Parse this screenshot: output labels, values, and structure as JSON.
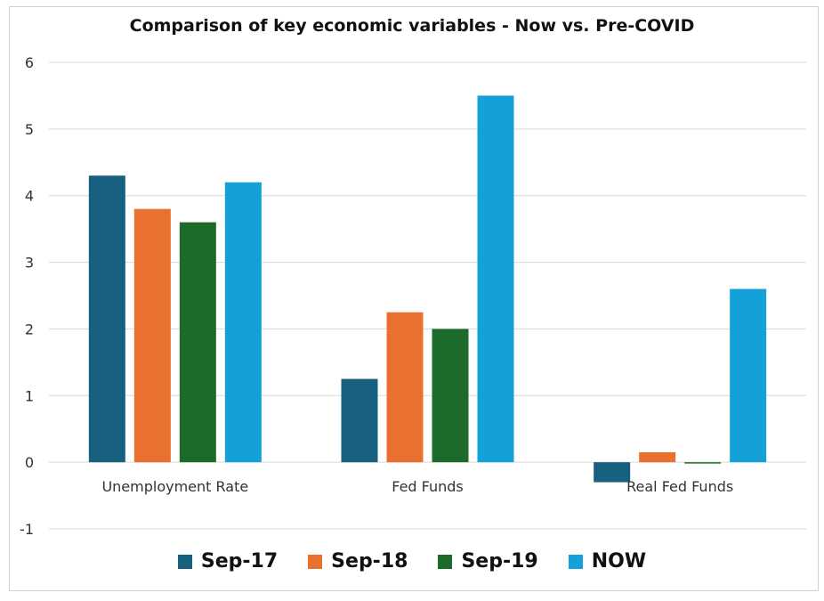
{
  "chart_data": {
    "type": "bar",
    "title": "Comparison of key economic variables - Now vs. Pre-COVID",
    "categories": [
      "Unemployment Rate",
      "Fed Funds",
      "Real Fed Funds"
    ],
    "series": [
      {
        "name": "Sep-17",
        "color": "#17607f",
        "values": [
          4.3,
          1.25,
          -0.3
        ]
      },
      {
        "name": "Sep-18",
        "color": "#e8712f",
        "values": [
          3.8,
          2.25,
          0.15
        ]
      },
      {
        "name": "Sep-19",
        "color": "#1d6b2a",
        "values": [
          3.6,
          2.0,
          -0.02
        ]
      },
      {
        "name": "NOW",
        "color": "#14a0d8",
        "values": [
          4.2,
          5.5,
          2.6
        ]
      }
    ],
    "ylim": [
      -1,
      6
    ],
    "yticks": [
      "-1",
      "0",
      "1",
      "2",
      "3",
      "4",
      "5",
      "6"
    ],
    "grid": true,
    "legend_position": "bottom"
  }
}
